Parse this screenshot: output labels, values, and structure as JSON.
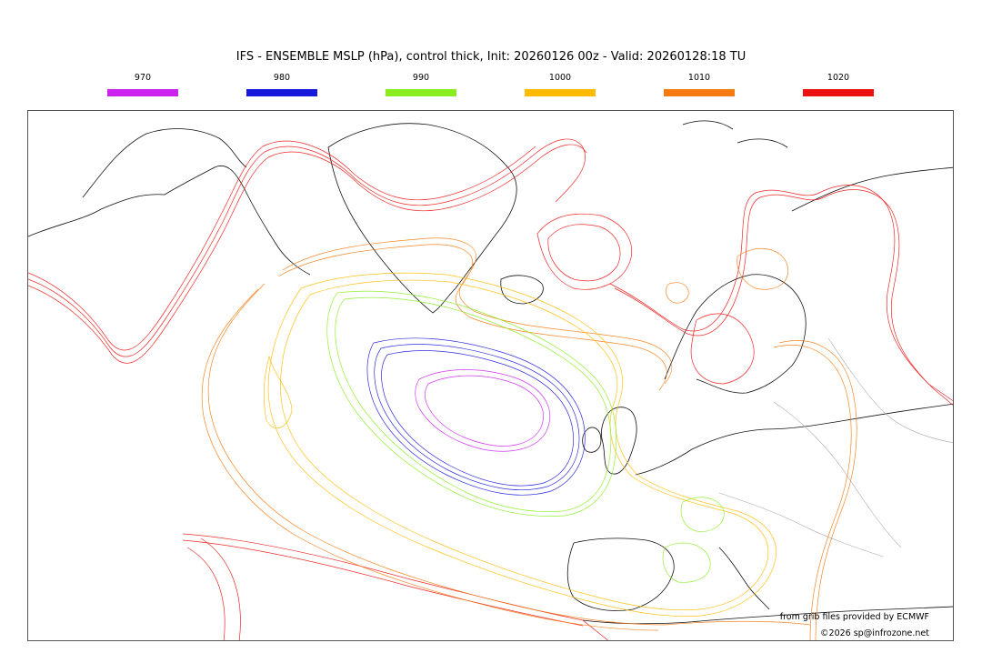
{
  "title": "IFS - ENSEMBLE MSLP (hPa), control thick, Init: 20260126 00z - Valid: 20260128:18 TU",
  "legend": [
    {
      "label": "970",
      "color": "#cc22ee"
    },
    {
      "label": "980",
      "color": "#1818dd"
    },
    {
      "label": "990",
      "color": "#88ee22"
    },
    {
      "label": "1000",
      "color": "#ffbb00"
    },
    {
      "label": "1010",
      "color": "#f57a10"
    },
    {
      "label": "1020",
      "color": "#ee1111"
    }
  ],
  "credits": {
    "source": "from grib files provided by ECMWF",
    "copyright": "©2026 sp@infrozone.net"
  }
}
